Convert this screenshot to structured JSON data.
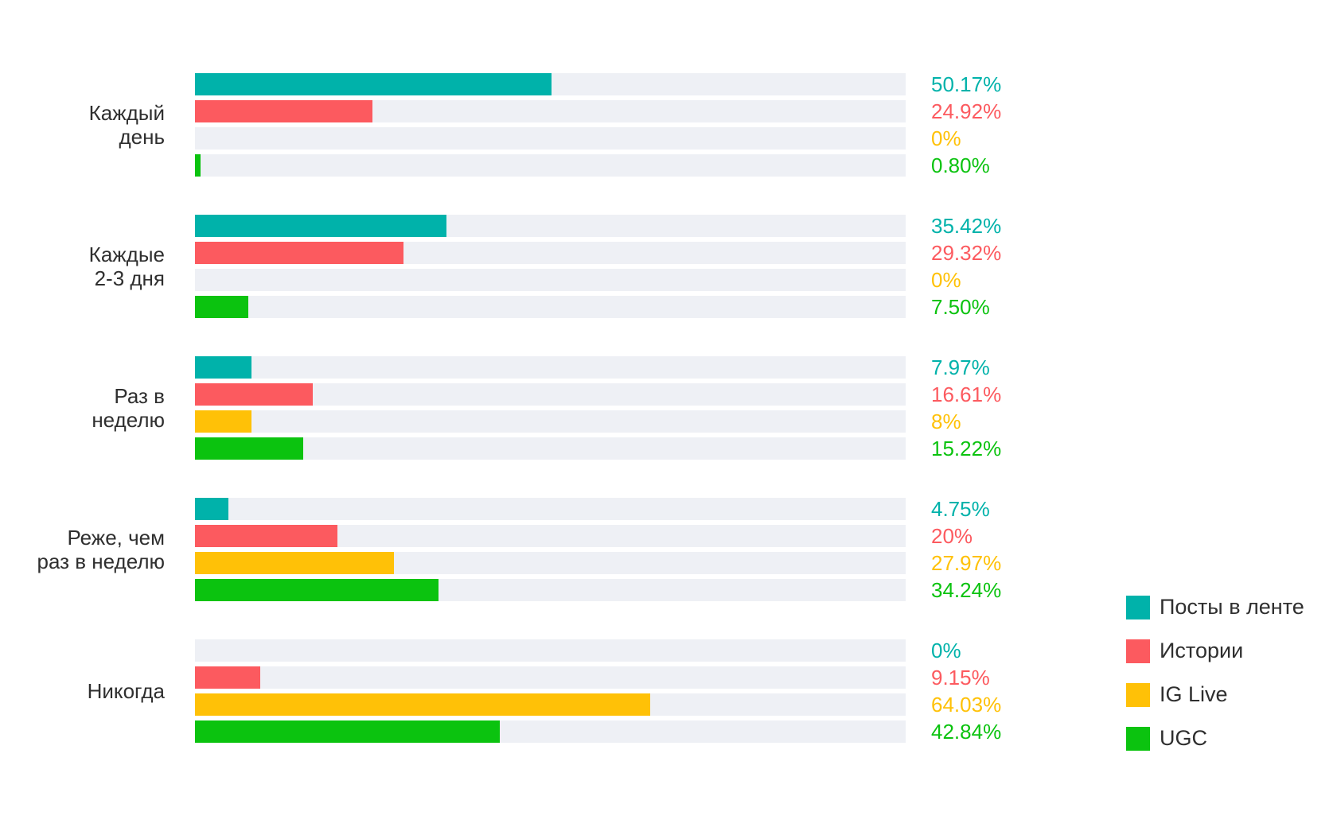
{
  "chart_data": {
    "type": "bar",
    "orientation": "horizontal",
    "title": "",
    "xlabel": "",
    "ylabel": "",
    "xlim": [
      0,
      100
    ],
    "grid": false,
    "legend_position": "right-bottom",
    "track_color": "#eef0f5",
    "text_color": "#2f2f2f",
    "categories": [
      "Каждый\nдень",
      "Каждые\n2-3 дня",
      "Раз в\nнеделю",
      "Реже, чем\nраз в неделю",
      "Никогда"
    ],
    "series": [
      {
        "name": "Посты в ленте",
        "color": "#00b2aa",
        "values": [
          50.17,
          35.42,
          7.97,
          4.75,
          0
        ]
      },
      {
        "name": "Истории",
        "color": "#fc5a5f",
        "values": [
          24.92,
          29.32,
          16.61,
          20,
          9.15
        ]
      },
      {
        "name": "IG Live",
        "color": "#ffc107",
        "values": [
          0,
          0,
          8,
          27.97,
          64.03
        ]
      },
      {
        "name": "UGC",
        "color": "#0bc30f",
        "values": [
          0.8,
          7.5,
          15.22,
          34.24,
          42.84
        ]
      }
    ],
    "value_labels": [
      [
        "50.17%",
        "24.92%",
        "0%",
        "0.80%"
      ],
      [
        "35.42%",
        "29.32%",
        "0%",
        "7.50%"
      ],
      [
        "7.97%",
        "16.61%",
        "8%",
        "15.22%"
      ],
      [
        "4.75%",
        "20%",
        "27.97%",
        "34.24%"
      ],
      [
        "0%",
        "9.15%",
        "64.03%",
        "42.84%"
      ]
    ]
  }
}
